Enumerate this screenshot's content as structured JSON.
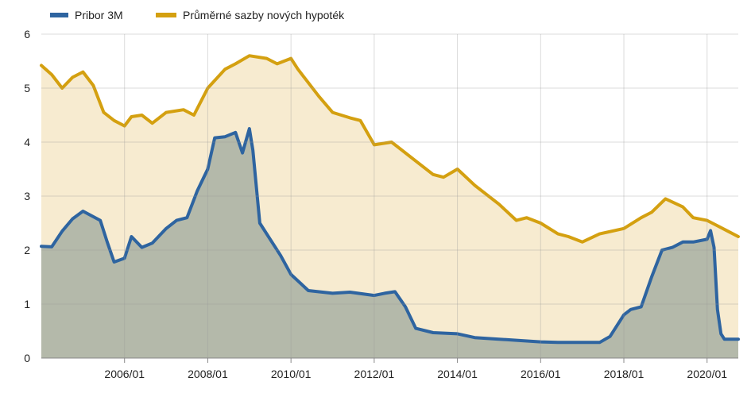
{
  "chart_data": {
    "type": "area",
    "title": "",
    "xlabel": "",
    "ylabel": "",
    "x_range": [
      "2004-01",
      "2020-10"
    ],
    "x_ticks": [
      "2006/01",
      "2008/01",
      "2010/01",
      "2012/01",
      "2014/01",
      "2016/01",
      "2018/01",
      "2020/01"
    ],
    "ylim": [
      0,
      6
    ],
    "y_ticks": [
      0,
      1,
      2,
      3,
      4,
      5,
      6
    ],
    "grid": true,
    "legend_position": "top-left",
    "series": [
      {
        "name": "Pribor 3M",
        "color": "#2e64a0",
        "fill": "#b0bcc8",
        "data": [
          [
            "2004-01",
            2.07
          ],
          [
            "2004-04",
            2.06
          ],
          [
            "2004-07",
            2.35
          ],
          [
            "2004-10",
            2.58
          ],
          [
            "2005-01",
            2.72
          ],
          [
            "2005-06",
            2.55
          ],
          [
            "2005-08",
            2.15
          ],
          [
            "2005-10",
            1.78
          ],
          [
            "2006-01",
            1.85
          ],
          [
            "2006-03",
            2.25
          ],
          [
            "2006-06",
            2.05
          ],
          [
            "2006-09",
            2.13
          ],
          [
            "2007-01",
            2.4
          ],
          [
            "2007-04",
            2.55
          ],
          [
            "2007-07",
            2.6
          ],
          [
            "2007-10",
            3.1
          ],
          [
            "2008-01",
            3.5
          ],
          [
            "2008-03",
            4.08
          ],
          [
            "2008-06",
            4.1
          ],
          [
            "2008-09",
            4.18
          ],
          [
            "2008-11",
            3.8
          ],
          [
            "2009-01",
            4.25
          ],
          [
            "2009-02",
            3.85
          ],
          [
            "2009-04",
            2.5
          ],
          [
            "2009-07",
            2.2
          ],
          [
            "2009-10",
            1.9
          ],
          [
            "2010-01",
            1.55
          ],
          [
            "2010-06",
            1.25
          ],
          [
            "2011-01",
            1.2
          ],
          [
            "2011-06",
            1.22
          ],
          [
            "2012-01",
            1.16
          ],
          [
            "2012-04",
            1.2
          ],
          [
            "2012-07",
            1.23
          ],
          [
            "2012-10",
            0.95
          ],
          [
            "2013-01",
            0.55
          ],
          [
            "2013-06",
            0.47
          ],
          [
            "2014-01",
            0.45
          ],
          [
            "2014-06",
            0.38
          ],
          [
            "2015-01",
            0.35
          ],
          [
            "2015-06",
            0.33
          ],
          [
            "2016-01",
            0.3
          ],
          [
            "2016-06",
            0.29
          ],
          [
            "2017-01",
            0.29
          ],
          [
            "2017-06",
            0.29
          ],
          [
            "2017-09",
            0.4
          ],
          [
            "2018-01",
            0.8
          ],
          [
            "2018-03",
            0.9
          ],
          [
            "2018-06",
            0.95
          ],
          [
            "2018-09",
            1.5
          ],
          [
            "2018-12",
            2.0
          ],
          [
            "2019-03",
            2.05
          ],
          [
            "2019-06",
            2.15
          ],
          [
            "2019-09",
            2.15
          ],
          [
            "2020-01",
            2.2
          ],
          [
            "2020-02",
            2.36
          ],
          [
            "2020-03",
            2.05
          ],
          [
            "2020-04",
            0.9
          ],
          [
            "2020-05",
            0.45
          ],
          [
            "2020-06",
            0.35
          ],
          [
            "2020-10",
            0.35
          ]
        ]
      },
      {
        "name": "Průměrné sazby nových hypoték",
        "color": "#d4a010",
        "fill": "#f7ebd0",
        "data": [
          [
            "2004-01",
            5.42
          ],
          [
            "2004-04",
            5.25
          ],
          [
            "2004-07",
            5.0
          ],
          [
            "2004-10",
            5.2
          ],
          [
            "2005-01",
            5.3
          ],
          [
            "2005-04",
            5.05
          ],
          [
            "2005-07",
            4.55
          ],
          [
            "2005-10",
            4.4
          ],
          [
            "2006-01",
            4.3
          ],
          [
            "2006-03",
            4.47
          ],
          [
            "2006-06",
            4.5
          ],
          [
            "2006-09",
            4.35
          ],
          [
            "2007-01",
            4.55
          ],
          [
            "2007-06",
            4.6
          ],
          [
            "2007-09",
            4.5
          ],
          [
            "2008-01",
            5.0
          ],
          [
            "2008-06",
            5.35
          ],
          [
            "2008-09",
            5.45
          ],
          [
            "2009-01",
            5.6
          ],
          [
            "2009-06",
            5.55
          ],
          [
            "2009-09",
            5.45
          ],
          [
            "2010-01",
            5.55
          ],
          [
            "2010-03",
            5.35
          ],
          [
            "2010-06",
            5.1
          ],
          [
            "2010-09",
            4.85
          ],
          [
            "2011-01",
            4.55
          ],
          [
            "2011-06",
            4.45
          ],
          [
            "2011-09",
            4.4
          ],
          [
            "2012-01",
            3.95
          ],
          [
            "2012-06",
            4.0
          ],
          [
            "2012-09",
            3.85
          ],
          [
            "2013-01",
            3.65
          ],
          [
            "2013-06",
            3.4
          ],
          [
            "2013-09",
            3.35
          ],
          [
            "2014-01",
            3.5
          ],
          [
            "2014-06",
            3.2
          ],
          [
            "2015-01",
            2.85
          ],
          [
            "2015-06",
            2.55
          ],
          [
            "2015-09",
            2.6
          ],
          [
            "2016-01",
            2.5
          ],
          [
            "2016-06",
            2.3
          ],
          [
            "2016-09",
            2.25
          ],
          [
            "2017-01",
            2.15
          ],
          [
            "2017-06",
            2.3
          ],
          [
            "2018-01",
            2.4
          ],
          [
            "2018-06",
            2.6
          ],
          [
            "2018-09",
            2.7
          ],
          [
            "2019-01",
            2.95
          ],
          [
            "2019-06",
            2.8
          ],
          [
            "2019-09",
            2.6
          ],
          [
            "2020-01",
            2.55
          ],
          [
            "2020-04",
            2.45
          ],
          [
            "2020-07",
            2.35
          ],
          [
            "2020-10",
            2.25
          ]
        ]
      }
    ]
  }
}
